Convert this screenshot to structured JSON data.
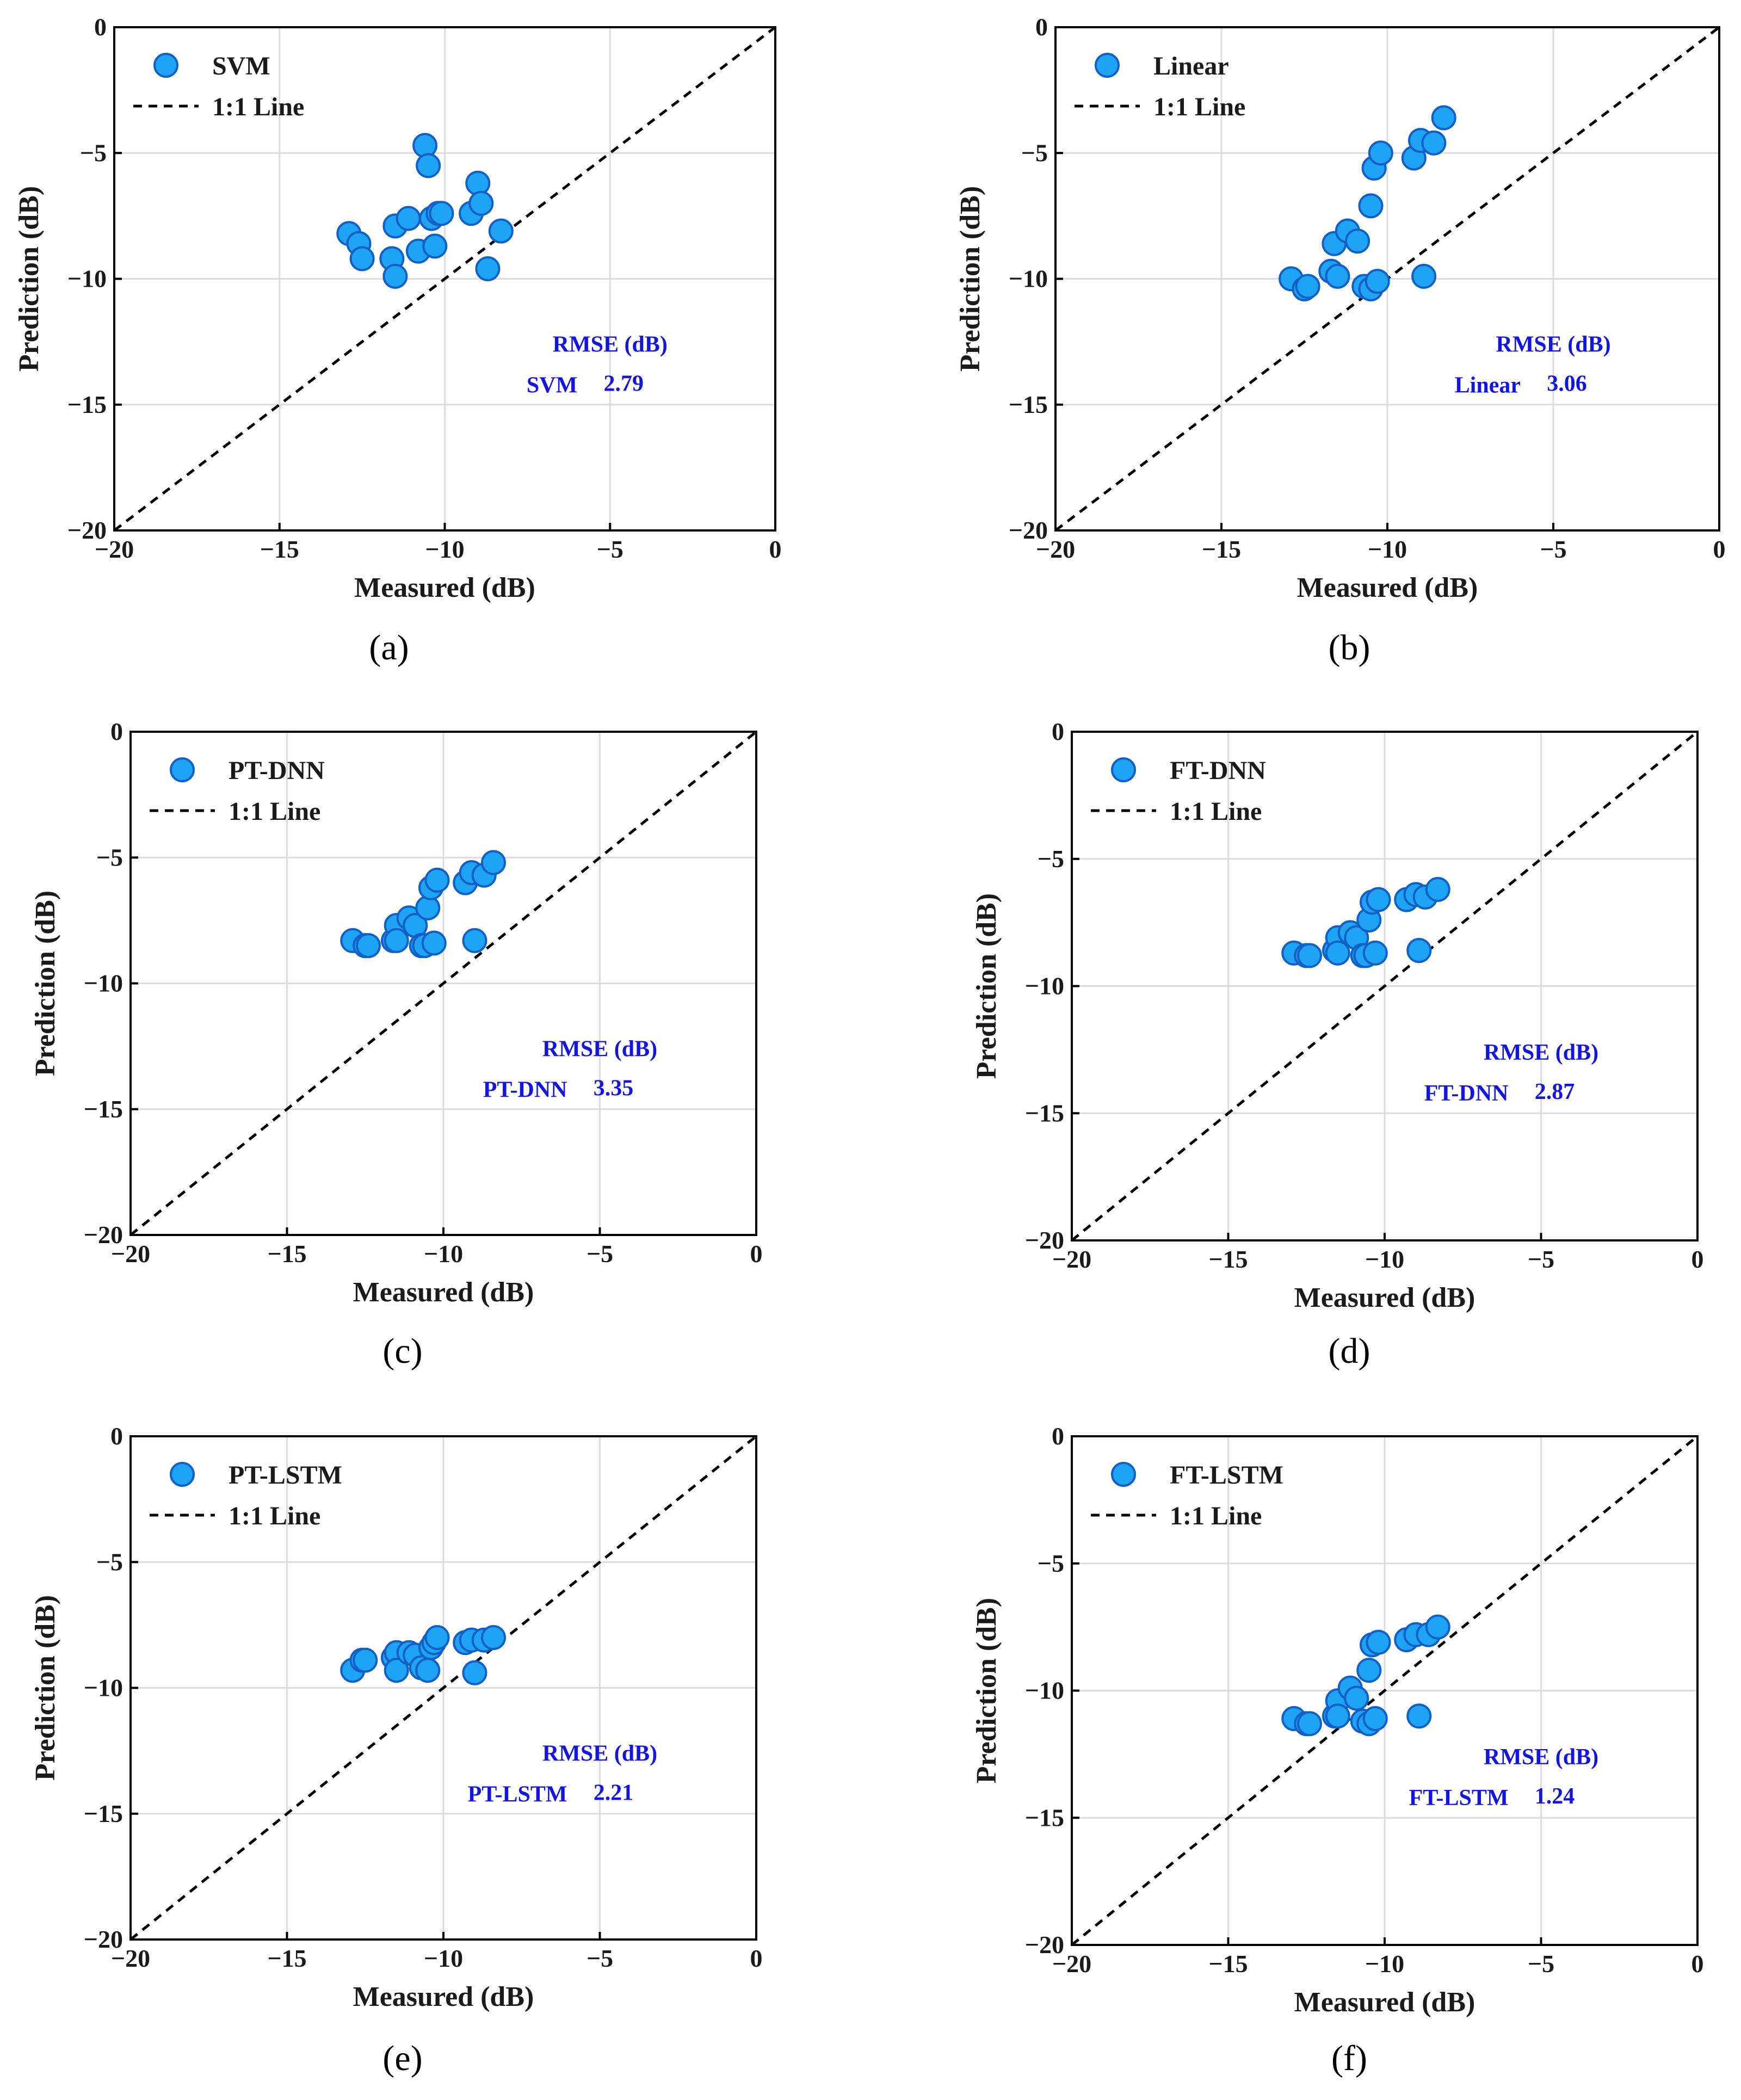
{
  "figure": {
    "colors": {
      "marker_fill": "#1fa3f5",
      "marker_edge": "#1060c8",
      "rmse_text": "#1414e0",
      "grid": "#dcdcdc"
    }
  },
  "chart_data": [
    {
      "type": "scatter",
      "panel": "(a)",
      "caption": "(a)",
      "xlabel": "Measured (dB)",
      "ylabel": "Prediction (dB)",
      "xlim": [
        -20,
        0
      ],
      "ylim": [
        -20,
        0
      ],
      "xticks": [
        "−20",
        "−15",
        "−10",
        "−5",
        "0"
      ],
      "yticks": [
        "0",
        "−5",
        "−10",
        "−15",
        "−20"
      ],
      "grid": true,
      "legend_position": "top-left",
      "legend": [
        "SVM",
        "1:1 Line"
      ],
      "rmse_header": "RMSE (dB)",
      "model": "SVM",
      "rmse": "2.79",
      "series": [
        {
          "name": "SVM",
          "x": [
            -12.9,
            -12.6,
            -12.5,
            -11.6,
            -11.5,
            -11.5,
            -11.1,
            -10.8,
            -10.6,
            -10.5,
            -10.4,
            -10.3,
            -10.2,
            -10.1,
            -9.2,
            -9.0,
            -8.9,
            -8.7,
            -8.3
          ],
          "y": [
            -8.2,
            -8.6,
            -9.2,
            -9.2,
            -9.9,
            -7.9,
            -7.6,
            -8.9,
            -4.7,
            -5.5,
            -7.6,
            -8.7,
            -7.4,
            -7.4,
            -7.4,
            -6.2,
            -7.0,
            -9.6,
            -8.1
          ]
        }
      ]
    },
    {
      "type": "scatter",
      "panel": "(b)",
      "caption": "(b)",
      "xlabel": "Measured (dB)",
      "ylabel": "Prediction (dB)",
      "xlim": [
        -20,
        0
      ],
      "ylim": [
        -20,
        0
      ],
      "xticks": [
        "−20",
        "−15",
        "−10",
        "−5",
        "0"
      ],
      "yticks": [
        "0",
        "−5",
        "−10",
        "−15",
        "−20"
      ],
      "grid": true,
      "legend_position": "top-left",
      "legend": [
        "Linear",
        "1:1 Line"
      ],
      "rmse_header": "RMSE (dB)",
      "model": "Linear",
      "rmse": "3.06",
      "series": [
        {
          "name": "Linear",
          "x": [
            -12.9,
            -12.5,
            -12.4,
            -11.7,
            -11.6,
            -11.5,
            -11.2,
            -10.9,
            -10.7,
            -10.5,
            -10.5,
            -10.4,
            -10.3,
            -10.2,
            -9.2,
            -9.0,
            -8.9,
            -8.6,
            -8.3
          ],
          "y": [
            -10.0,
            -10.4,
            -10.3,
            -9.7,
            -8.6,
            -9.9,
            -8.1,
            -8.5,
            -10.3,
            -10.4,
            -7.1,
            -5.6,
            -10.1,
            -5.0,
            -5.2,
            -4.5,
            -9.9,
            -4.6,
            -3.6
          ]
        }
      ]
    },
    {
      "type": "scatter",
      "panel": "(c)",
      "caption": "(c)",
      "xlabel": "Measured (dB)",
      "ylabel": "Prediction (dB)",
      "xlim": [
        -20,
        0
      ],
      "ylim": [
        -20,
        0
      ],
      "xticks": [
        "−20",
        "−15",
        "−10",
        "−5",
        "0"
      ],
      "yticks": [
        "0",
        "−5",
        "−10",
        "−15",
        "−20"
      ],
      "grid": true,
      "legend_position": "top-left",
      "legend": [
        "PT-DNN",
        "1:1 Line"
      ],
      "rmse_header": "RMSE (dB)",
      "model": "PT-DNN",
      "rmse": "3.35",
      "series": [
        {
          "name": "PT-DNN",
          "x": [
            -12.9,
            -12.5,
            -12.4,
            -11.6,
            -11.5,
            -11.5,
            -11.1,
            -10.9,
            -10.7,
            -10.6,
            -10.5,
            -10.4,
            -10.3,
            -10.2,
            -9.3,
            -9.1,
            -9.0,
            -8.7,
            -8.4
          ],
          "y": [
            -8.3,
            -8.5,
            -8.5,
            -8.3,
            -7.7,
            -8.3,
            -7.4,
            -7.7,
            -8.5,
            -8.5,
            -7.0,
            -6.2,
            -8.4,
            -5.9,
            -6.0,
            -5.6,
            -8.3,
            -5.7,
            -5.2
          ]
        }
      ]
    },
    {
      "type": "scatter",
      "panel": "(d)",
      "caption": "(d)",
      "xlabel": "Measured (dB)",
      "ylabel": "Prediction (dB)",
      "xlim": [
        -20,
        0
      ],
      "ylim": [
        -20,
        0
      ],
      "xticks": [
        "−20",
        "−15",
        "−10",
        "−5",
        "0"
      ],
      "yticks": [
        "0",
        "−5",
        "−10",
        "−15",
        "−20"
      ],
      "grid": true,
      "legend_position": "top-left",
      "legend": [
        "FT-DNN",
        "1:1 Line"
      ],
      "rmse_header": "RMSE (dB)",
      "model": "FT-DNN",
      "rmse": "2.87",
      "series": [
        {
          "name": "FT-DNN",
          "x": [
            -12.9,
            -12.5,
            -12.4,
            -11.6,
            -11.5,
            -11.5,
            -11.1,
            -10.9,
            -10.7,
            -10.6,
            -10.5,
            -10.4,
            -10.3,
            -10.2,
            -9.3,
            -9.0,
            -8.9,
            -8.7,
            -8.3
          ],
          "y": [
            -8.7,
            -8.8,
            -8.8,
            -8.6,
            -8.1,
            -8.7,
            -7.9,
            -8.1,
            -8.8,
            -8.8,
            -7.4,
            -6.7,
            -8.7,
            -6.6,
            -6.6,
            -6.4,
            -8.6,
            -6.5,
            -6.2
          ]
        }
      ]
    },
    {
      "type": "scatter",
      "panel": "(e)",
      "caption": "(e)",
      "xlabel": "Measured (dB)",
      "ylabel": "Prediction (dB)",
      "xlim": [
        -20,
        0
      ],
      "ylim": [
        -20,
        0
      ],
      "xticks": [
        "−20",
        "−15",
        "−10",
        "−5",
        "0"
      ],
      "yticks": [
        "0",
        "−5",
        "−10",
        "−15",
        "−20"
      ],
      "grid": true,
      "legend_position": "top-left",
      "legend": [
        "PT-LSTM",
        "1:1 Line"
      ],
      "rmse_header": "RMSE (dB)",
      "model": "PT-LSTM",
      "rmse": "2.21",
      "series": [
        {
          "name": "PT-LSTM",
          "x": [
            -12.9,
            -12.6,
            -12.5,
            -11.6,
            -11.5,
            -11.5,
            -11.1,
            -10.9,
            -10.7,
            -10.5,
            -10.4,
            -10.3,
            -10.2,
            -9.3,
            -9.1,
            -9.0,
            -8.7,
            -8.4
          ],
          "y": [
            -9.3,
            -8.9,
            -8.9,
            -8.8,
            -8.6,
            -9.3,
            -8.6,
            -8.7,
            -9.2,
            -9.3,
            -8.4,
            -8.2,
            -8.0,
            -8.2,
            -8.1,
            -9.4,
            -8.1,
            -8.0
          ]
        }
      ]
    },
    {
      "type": "scatter",
      "panel": "(f)",
      "caption": "(f)",
      "xlabel": "Measured (dB)",
      "ylabel": "Prediction (dB)",
      "xlim": [
        -20,
        0
      ],
      "ylim": [
        -20,
        0
      ],
      "xticks": [
        "−20",
        "−15",
        "−10",
        "−5",
        "0"
      ],
      "yticks": [
        "0",
        "−5",
        "−10",
        "−15",
        "−20"
      ],
      "grid": true,
      "legend_position": "top-left",
      "legend": [
        "FT-LSTM",
        "1:1 Line"
      ],
      "rmse_header": "RMSE (dB)",
      "model": "FT-LSTM",
      "rmse": "1.24",
      "series": [
        {
          "name": "FT-LSTM",
          "x": [
            -12.9,
            -12.5,
            -12.4,
            -11.6,
            -11.5,
            -11.5,
            -11.1,
            -10.9,
            -10.7,
            -10.5,
            -10.5,
            -10.4,
            -10.3,
            -10.2,
            -9.3,
            -9.0,
            -8.9,
            -8.6,
            -8.3
          ],
          "y": [
            -11.1,
            -11.3,
            -11.3,
            -11.0,
            -10.4,
            -11.0,
            -9.9,
            -10.3,
            -11.2,
            -11.3,
            -9.2,
            -8.2,
            -11.1,
            -8.1,
            -8.0,
            -7.8,
            -11.0,
            -7.8,
            -7.5
          ]
        }
      ]
    }
  ]
}
